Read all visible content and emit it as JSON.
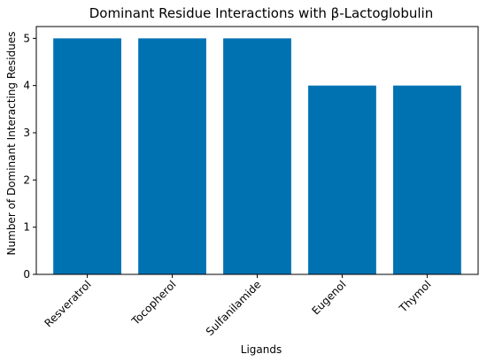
{
  "chart_data": {
    "type": "bar",
    "title": "Dominant Residue Interactions with β-Lactoglobulin",
    "xlabel": "Ligands",
    "ylabel": "Number of Dominant Interacting Residues",
    "categories": [
      "Resveratrol",
      "Tocopherol",
      "Sulfanilamide",
      "Eugenol",
      "Thymol"
    ],
    "values": [
      5,
      5,
      5,
      4,
      4
    ],
    "ylim": [
      0,
      5.25
    ],
    "yticks": [
      "0",
      "1",
      "2",
      "3",
      "4",
      "5"
    ],
    "grid": false,
    "legend": "none",
    "bar_color": "#0072b2",
    "xtick_rotation_deg": -45
  }
}
